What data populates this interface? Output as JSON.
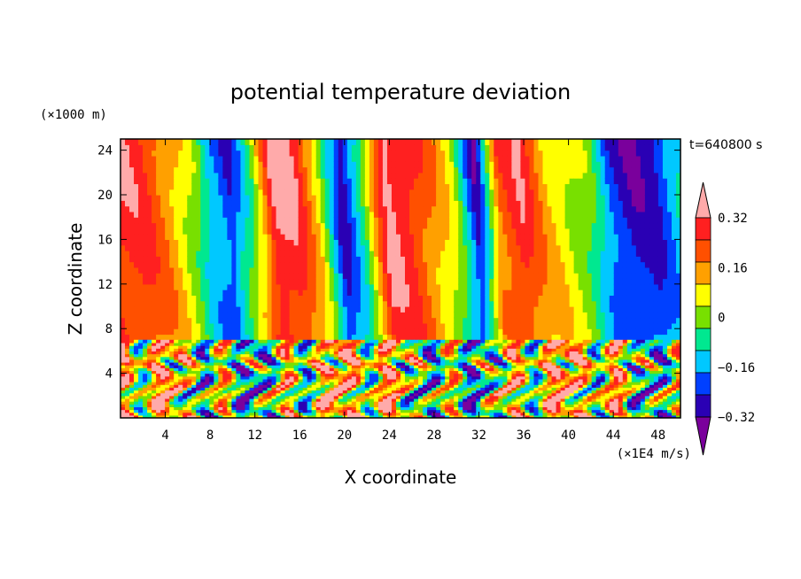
{
  "chart_data": {
    "type": "heatmap",
    "title": "potential temperature deviation",
    "time_label": "t=640800 s",
    "xlabel": "X coordinate",
    "ylabel": "Z coordinate",
    "x_unit": "(×1E4 m/s)",
    "y_unit": "(×1000 m)",
    "x_ticks": [
      "4",
      "8",
      "12",
      "16",
      "20",
      "24",
      "28",
      "32",
      "36",
      "40",
      "44",
      "48"
    ],
    "y_ticks": [
      "4",
      "8",
      "12",
      "16",
      "20",
      "24"
    ],
    "xlim": [
      0,
      50
    ],
    "ylim": [
      0,
      25
    ],
    "colorbar": {
      "labels": [
        "0.32",
        "0.16",
        "0",
        "−0.16",
        "−0.32"
      ],
      "label_values": [
        0.32,
        0.16,
        0,
        -0.16,
        -0.32
      ],
      "levels": [
        -0.4,
        -0.32,
        -0.24,
        -0.16,
        -0.08,
        0,
        0.08,
        0.16,
        0.24,
        0.32,
        0.4
      ],
      "extend": "both",
      "colors": [
        "#7a009c",
        "#2a00b4",
        "#0040ff",
        "#00c8ff",
        "#00e890",
        "#78e000",
        "#ffff00",
        "#ffa000",
        "#ff5000",
        "#ff2020",
        "#ffaaaa"
      ]
    },
    "upper_layer": {
      "z_range": [
        7,
        25
      ],
      "x": [
        0,
        2,
        5,
        7,
        8,
        10,
        12,
        14,
        16,
        18,
        20,
        22,
        24,
        26,
        28,
        30,
        32,
        34,
        36,
        38,
        40,
        42,
        44,
        46,
        48,
        50
      ],
      "values": [
        0.3,
        0.28,
        0.12,
        -0.05,
        -0.2,
        -0.33,
        -0.05,
        0.36,
        0.3,
        0.05,
        -0.38,
        -0.1,
        0.36,
        0.3,
        0.16,
        0.0,
        -0.38,
        0.2,
        0.3,
        0.12,
        0.04,
        -0.05,
        -0.3,
        -0.38,
        -0.35,
        -0.2
      ]
    },
    "lower_layer": {
      "z_range": [
        0,
        7
      ],
      "description": "turbulent mixed field with values from -0.4 to 0.4"
    }
  }
}
